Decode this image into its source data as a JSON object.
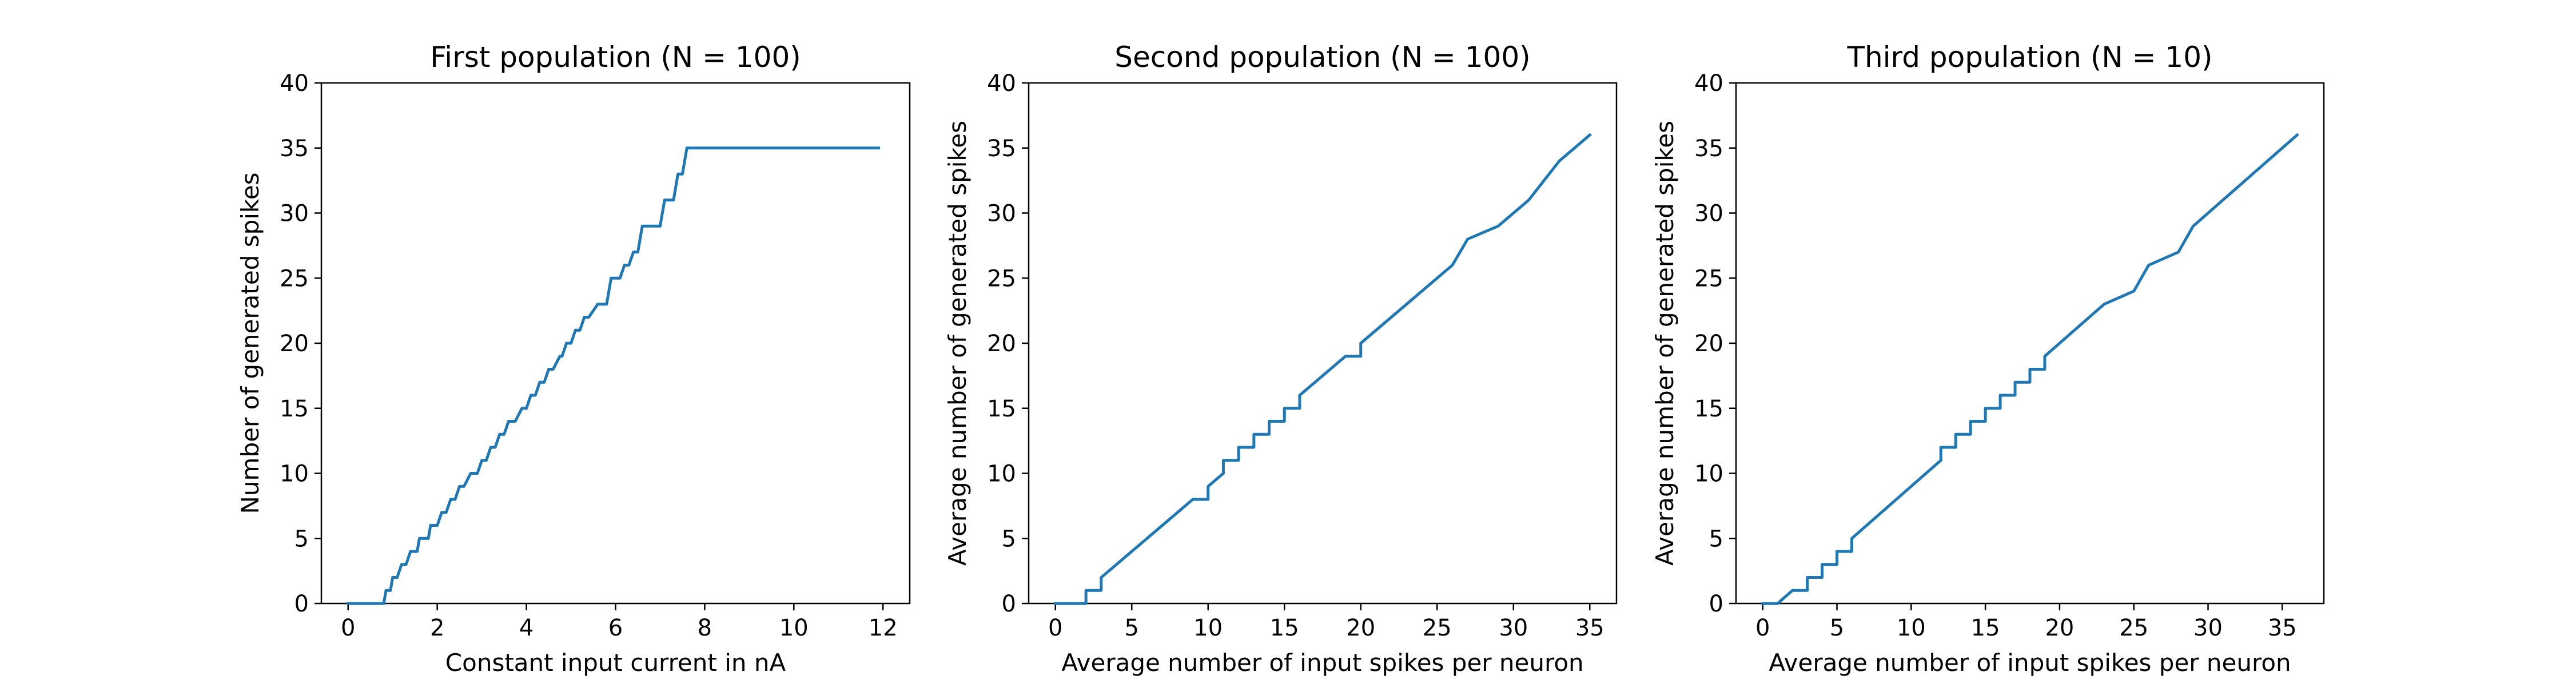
{
  "chart_data": [
    {
      "type": "line",
      "title": "First population (N = 100)",
      "xlabel": "Constant input current in nA",
      "ylabel": "Number of generated spikes",
      "xlim": [
        -0.6,
        12.6
      ],
      "ylim": [
        0,
        40
      ],
      "xticks": [
        0,
        2,
        4,
        6,
        8,
        10,
        12
      ],
      "yticks": [
        0,
        5,
        10,
        15,
        20,
        25,
        30,
        35,
        40
      ],
      "grid": false,
      "series": [
        {
          "color": "#1f77b4",
          "x": [
            0,
            0.8,
            0.85,
            0.95,
            1.0,
            1.1,
            1.2,
            1.3,
            1.4,
            1.55,
            1.6,
            1.8,
            1.85,
            2.0,
            2.1,
            2.2,
            2.3,
            2.4,
            2.5,
            2.6,
            2.75,
            2.9,
            3.0,
            3.1,
            3.2,
            3.3,
            3.4,
            3.5,
            3.6,
            3.75,
            3.9,
            4.0,
            4.1,
            4.2,
            4.3,
            4.4,
            4.5,
            4.6,
            4.75,
            4.8,
            4.9,
            5.0,
            5.1,
            5.2,
            5.3,
            5.4,
            5.6,
            5.8,
            5.9,
            6.1,
            6.2,
            6.3,
            6.4,
            6.5,
            6.6,
            7.0,
            7.1,
            7.3,
            7.4,
            7.5,
            7.6,
            7.7,
            7.8,
            7.9,
            8.1,
            8.2,
            8.3,
            8.6,
            8.7,
            9.1,
            9.2,
            9.5,
            9.6,
            9.8,
            9.9,
            10.3,
            10.4,
            10.9,
            11.0,
            11.9
          ],
          "y": [
            0,
            0,
            1,
            1,
            2,
            2,
            3,
            3,
            4,
            4,
            5,
            5,
            6,
            6,
            7,
            7,
            8,
            8,
            9,
            9,
            10,
            10,
            11,
            11,
            12,
            12,
            13,
            13,
            14,
            14,
            15,
            15,
            16,
            16,
            17,
            17,
            18,
            18,
            19,
            19,
            20,
            20,
            21,
            21,
            22,
            22,
            23,
            23,
            25,
            25,
            26,
            26,
            27,
            27,
            29,
            29,
            31,
            31,
            33,
            33,
            35,
            35,
            35,
            35,
            35,
            35,
            35,
            35,
            35,
            35,
            35,
            35,
            35,
            35,
            35,
            35,
            35,
            35,
            35,
            35
          ]
        }
      ]
    },
    {
      "type": "line",
      "title": "Second population (N = 100)",
      "xlabel": "Average number of input spikes per neuron",
      "ylabel": "Average number of generated spikes",
      "xlim": [
        -1.75,
        36.75
      ],
      "ylim": [
        0,
        40
      ],
      "xticks": [
        0,
        5,
        10,
        15,
        20,
        25,
        30,
        35
      ],
      "yticks": [
        0,
        5,
        10,
        15,
        20,
        25,
        30,
        35,
        40
      ],
      "grid": false,
      "series": [
        {
          "color": "#1f77b4",
          "x": [
            0,
            2,
            2,
            3,
            3,
            9,
            10,
            10,
            11,
            11,
            12,
            12,
            13,
            13,
            14,
            14,
            15,
            15,
            16,
            16,
            19,
            20,
            20,
            26,
            27,
            29,
            31,
            33,
            35
          ],
          "y": [
            0,
            0,
            1,
            1,
            2,
            8,
            8,
            9,
            10,
            11,
            11,
            12,
            12,
            13,
            13,
            14,
            14,
            15,
            15,
            16,
            19,
            19,
            20,
            26,
            28,
            29,
            31,
            34,
            36
          ]
        }
      ]
    },
    {
      "type": "line",
      "title": "Third population (N = 10)",
      "xlabel": "Average number of input spikes per neuron",
      "ylabel": "Average number of generated spikes",
      "xlim": [
        -1.8,
        37.8
      ],
      "ylim": [
        0,
        40
      ],
      "xticks": [
        0,
        5,
        10,
        15,
        20,
        25,
        30,
        35
      ],
      "yticks": [
        0,
        5,
        10,
        15,
        20,
        25,
        30,
        35,
        40
      ],
      "grid": false,
      "series": [
        {
          "color": "#1f77b4",
          "x": [
            0,
            1,
            2,
            3,
            3,
            4,
            4,
            5,
            5,
            6,
            6,
            12,
            12,
            13,
            13,
            14,
            14,
            15,
            15,
            16,
            16,
            17,
            17,
            18,
            18,
            19,
            19,
            23,
            25,
            26,
            28,
            29,
            36
          ],
          "y": [
            0,
            0,
            1,
            1,
            2,
            2,
            3,
            3,
            4,
            4,
            5,
            11,
            12,
            12,
            13,
            13,
            14,
            14,
            15,
            15,
            16,
            16,
            17,
            17,
            18,
            18,
            19,
            23,
            24,
            26,
            27,
            29,
            36
          ]
        }
      ]
    }
  ]
}
